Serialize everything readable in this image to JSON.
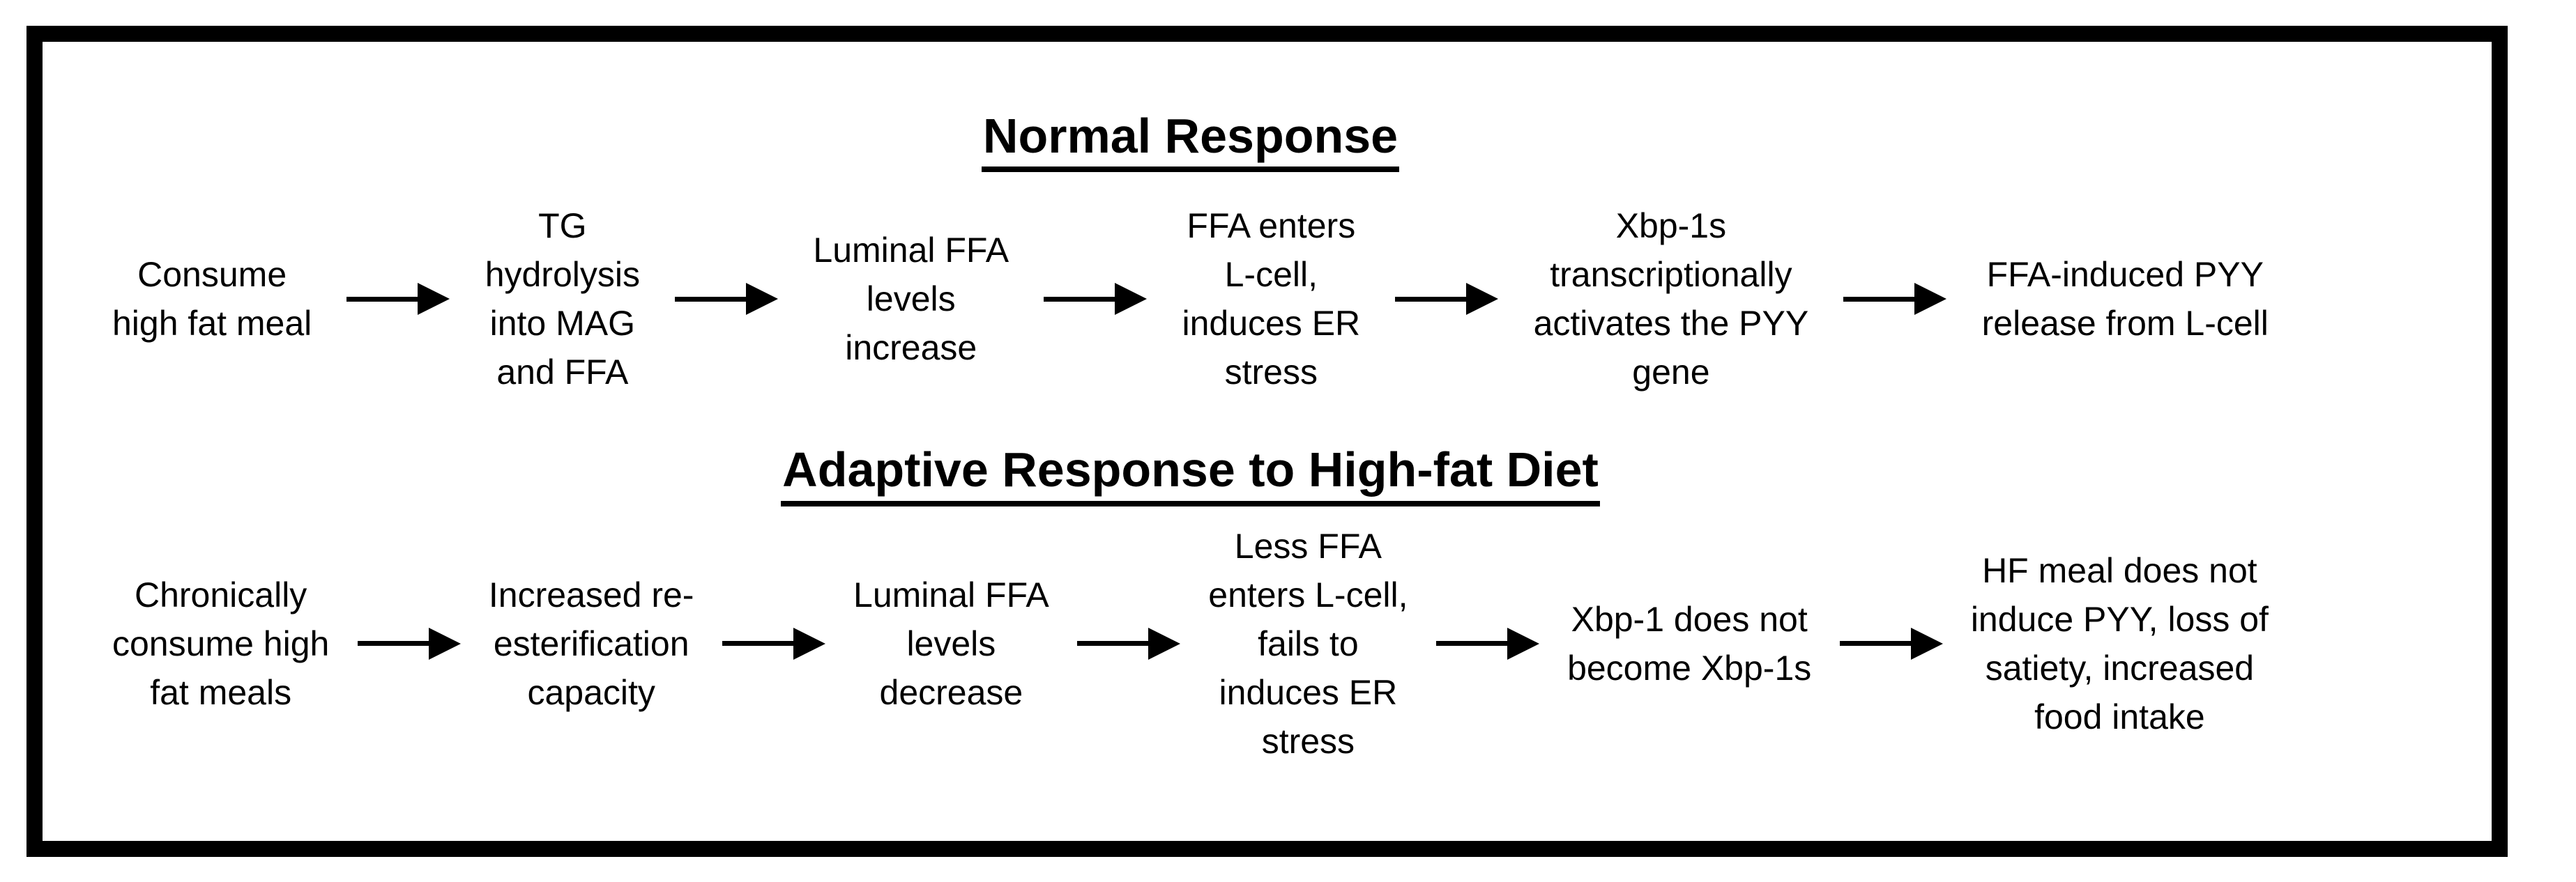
{
  "page": {
    "background_color": "#ffffff",
    "frame_border_color": "#000000",
    "text_color": "#000000"
  },
  "icons": {
    "flow_arrow": "arrow-right"
  },
  "sections": [
    {
      "title": "Normal Response",
      "steps": [
        {
          "text": "Consume\nhigh fat meal"
        },
        {
          "text": "TG\nhydrolysis\ninto MAG\nand FFA"
        },
        {
          "text": "Luminal FFA\nlevels\nincrease"
        },
        {
          "text": "FFA enters\nL-cell,\ninduces ER\nstress"
        },
        {
          "text": "Xbp-1s\ntranscriptionally\nactivates the PYY\ngene"
        },
        {
          "text": "FFA-induced PYY\nrelease from L-cell"
        }
      ]
    },
    {
      "title": "Adaptive Response to High-fat Diet",
      "steps": [
        {
          "text": "Chronically\nconsume high\nfat meals"
        },
        {
          "text": "Increased re-\nesterification\ncapacity"
        },
        {
          "text": "Luminal FFA\nlevels\ndecrease"
        },
        {
          "text": "Less FFA\nenters L-cell,\nfails to\ninduces ER\nstress"
        },
        {
          "text": "Xbp-1 does not\nbecome Xbp-1s"
        },
        {
          "text": "HF meal does not\ninduce PYY, loss of\nsatiety, increased\nfood intake"
        }
      ]
    }
  ]
}
